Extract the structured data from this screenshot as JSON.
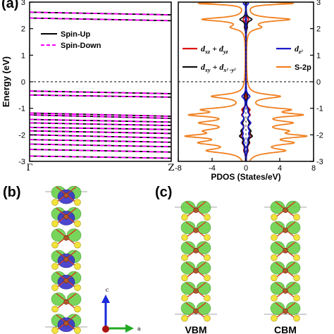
{
  "panels": {
    "a": "(a)",
    "b": "(b)",
    "c": "(c)"
  },
  "chart_data": [
    {
      "type": "line",
      "ylabel": "Energy (eV)",
      "ylim": [
        -3,
        3
      ],
      "yticks": [
        "-3",
        "-2",
        "-1",
        "0",
        "1",
        "2",
        "3"
      ],
      "xticks": [
        "Γ",
        "Z"
      ],
      "fermi_level": 0,
      "legend_placement": "top-left",
      "series": [
        {
          "name": "Spin-Up",
          "color": "#000000",
          "dash": "solid"
        },
        {
          "name": "Spin-Down",
          "color": "#ff00ff",
          "dash": "dashed"
        }
      ],
      "bands": [
        {
          "start": 2.62,
          "end": 2.52
        },
        {
          "start": 2.4,
          "end": 2.3
        },
        {
          "start": -0.35,
          "end": -0.45
        },
        {
          "start": -0.5,
          "end": -0.58
        },
        {
          "start": -1.18,
          "end": -1.3
        },
        {
          "start": -1.25,
          "end": -1.38
        },
        {
          "start": -1.42,
          "end": -1.52
        },
        {
          "start": -1.55,
          "end": -1.65
        },
        {
          "start": -1.72,
          "end": -1.8
        },
        {
          "start": -1.85,
          "end": -1.95
        },
        {
          "start": -2.0,
          "end": -2.12
        },
        {
          "start": -2.18,
          "end": -2.28
        },
        {
          "start": -2.35,
          "end": -2.45
        },
        {
          "start": -2.55,
          "end": -2.65
        },
        {
          "start": -2.8,
          "end": -2.88
        }
      ]
    },
    {
      "type": "line",
      "xlabel": "PDOS (States/eV)",
      "xlim": [
        -8,
        8
      ],
      "xticks": [
        "-8",
        "-4",
        "0",
        "4",
        "8"
      ],
      "ylim": [
        -3,
        3
      ],
      "yticks_right": [
        "-3",
        "-2",
        "-1",
        "0",
        "1",
        "2",
        "3"
      ],
      "series": [
        {
          "name": "d_xz + d_yz",
          "color": "#dd1111"
        },
        {
          "name": "d_xy + d_x2-y2",
          "color": "#111111"
        },
        {
          "name": "d_z2",
          "color": "#1a1acc"
        },
        {
          "name": "S-2p",
          "color": "#f08020"
        }
      ],
      "peaks": [
        {
          "e": 2.95,
          "w": 0.05,
          "s": 5.5,
          "dxz": 0.02,
          "dxy": 0.02,
          "dz2": 0.3
        },
        {
          "e": 2.35,
          "w": 0.08,
          "s": 5.0,
          "dxz": 0.3,
          "dxy": 0.7,
          "dz2": 0.05
        },
        {
          "e": 2.05,
          "w": 0.1,
          "s": 1.5,
          "dxz": 0.15,
          "dxy": 0.1,
          "dz2": 0.03
        },
        {
          "e": -0.55,
          "w": 0.09,
          "s": 3.8,
          "dxz": 0.08,
          "dxy": 0.2,
          "dz2": 0.45
        },
        {
          "e": -1.05,
          "w": 0.08,
          "s": 4.2,
          "dxz": 0.4,
          "dxy": 0.25,
          "dz2": 0.15
        },
        {
          "e": -1.25,
          "w": 0.08,
          "s": 5.5,
          "dxz": 0.4,
          "dxy": 0.35,
          "dz2": 0.35
        },
        {
          "e": -1.55,
          "w": 0.1,
          "s": 4.5,
          "dxz": 0.35,
          "dxy": 0.3,
          "dz2": 0.5
        },
        {
          "e": -1.85,
          "w": 0.1,
          "s": 3.5,
          "dxz": 0.3,
          "dxy": 0.45,
          "dz2": 0.3
        },
        {
          "e": -2.05,
          "w": 0.08,
          "s": 5.5,
          "dxz": 0.5,
          "dxy": 0.6,
          "dz2": 0.3
        },
        {
          "e": -2.3,
          "w": 0.1,
          "s": 4.5,
          "dxz": 0.35,
          "dxy": 0.3,
          "dz2": 0.2
        },
        {
          "e": -2.6,
          "w": 0.1,
          "s": 4.0,
          "dxz": 0.2,
          "dxy": 0.15,
          "dz2": 0.1
        }
      ]
    }
  ],
  "structures": {
    "c_labels": [
      "VBM",
      "CBM"
    ]
  }
}
